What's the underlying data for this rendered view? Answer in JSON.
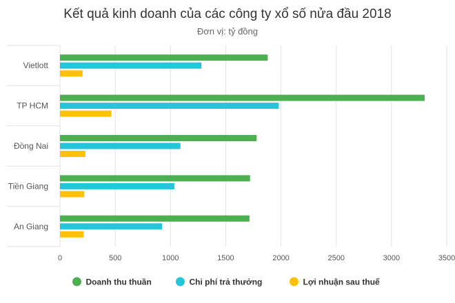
{
  "chart_data": {
    "type": "bar",
    "orientation": "horizontal",
    "title": "Kết quả kinh doanh của các công ty xổ số nửa đầu 2018",
    "subtitle": "Đơn vị: tỷ đồng",
    "categories": [
      "Vietlott",
      "TP HCM",
      "Đồng Nai",
      "Tiền Giang",
      "An Giang"
    ],
    "series": [
      {
        "name": "Doanh thu thuần",
        "color": "#4caf50",
        "values": [
          1880,
          3300,
          1780,
          1720,
          1715
        ]
      },
      {
        "name": "Chi phí trả thưởng",
        "color": "#26c6da",
        "values": [
          1280,
          1980,
          1090,
          1035,
          925
        ]
      },
      {
        "name": "Lợi nhuận sau thuế",
        "color": "#ffc107",
        "values": [
          205,
          465,
          230,
          220,
          215
        ]
      }
    ],
    "xlim": [
      0,
      3500
    ],
    "xticks": [
      0,
      500,
      1000,
      1500,
      2000,
      2500,
      3000,
      3500
    ],
    "grid": true,
    "legend": "bottom"
  }
}
